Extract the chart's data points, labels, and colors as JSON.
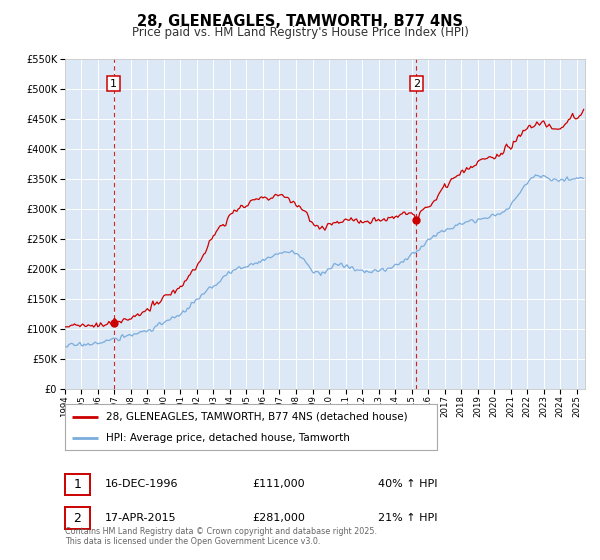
{
  "title": "28, GLENEAGLES, TAMWORTH, B77 4NS",
  "subtitle": "Price paid vs. HM Land Registry's House Price Index (HPI)",
  "bg_color": "#ffffff",
  "plot_bg_color": "#dce8f5",
  "grid_color": "#ffffff",
  "xmin": 1994.0,
  "xmax": 2025.5,
  "ymin": 0,
  "ymax": 550000,
  "yticks": [
    0,
    50000,
    100000,
    150000,
    200000,
    250000,
    300000,
    350000,
    400000,
    450000,
    500000,
    550000
  ],
  "ytick_labels": [
    "£0",
    "£50K",
    "£100K",
    "£150K",
    "£200K",
    "£250K",
    "£300K",
    "£350K",
    "£400K",
    "£450K",
    "£500K",
    "£550K"
  ],
  "xticks": [
    1994,
    1995,
    1996,
    1997,
    1998,
    1999,
    2000,
    2001,
    2002,
    2003,
    2004,
    2005,
    2006,
    2007,
    2008,
    2009,
    2010,
    2011,
    2012,
    2013,
    2014,
    2015,
    2016,
    2017,
    2018,
    2019,
    2020,
    2021,
    2022,
    2023,
    2024,
    2025
  ],
  "sale1_x": 1996.96,
  "sale1_y": 111000,
  "sale1_label": "1",
  "sale1_date": "16-DEC-1996",
  "sale1_price": "£111,000",
  "sale1_hpi": "40% ↑ HPI",
  "sale2_x": 2015.29,
  "sale2_y": 281000,
  "sale2_label": "2",
  "sale2_date": "17-APR-2015",
  "sale2_price": "£281,000",
  "sale2_hpi": "21% ↑ HPI",
  "red_line_color": "#cc0000",
  "blue_line_color": "#7aacdc",
  "legend_label_red": "28, GLENEAGLES, TAMWORTH, B77 4NS (detached house)",
  "legend_label_blue": "HPI: Average price, detached house, Tamworth",
  "footnote": "Contains HM Land Registry data © Crown copyright and database right 2025.\nThis data is licensed under the Open Government Licence v3.0."
}
